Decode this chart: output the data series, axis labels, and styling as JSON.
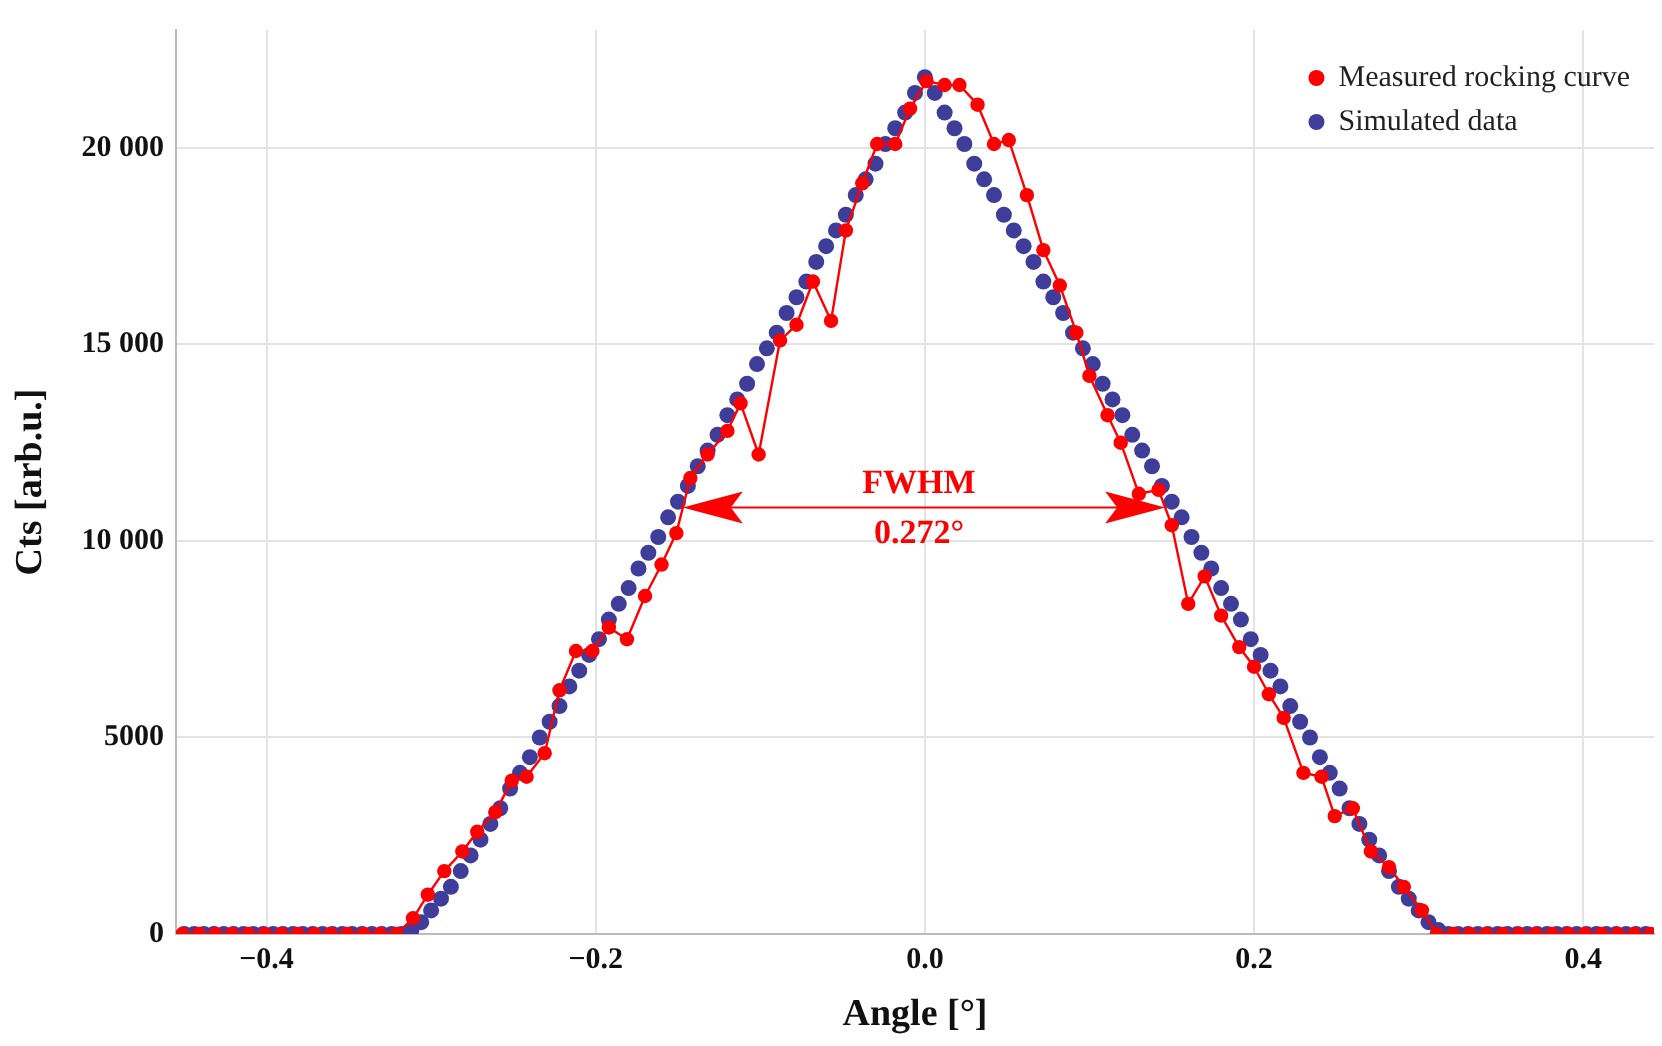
{
  "chart_data": {
    "type": "line",
    "xlabel": "Angle [°]",
    "ylabel": "Cts [arb.u.]",
    "xlim": [
      -0.455,
      0.443
    ],
    "ylim": [
      0,
      23000
    ],
    "xticks": [
      {
        "value": -0.4,
        "label": "−0.4"
      },
      {
        "value": -0.2,
        "label": "−0.2"
      },
      {
        "value": 0,
        "label": "0.0"
      },
      {
        "value": 0.2,
        "label": "0.2"
      },
      {
        "value": 0.4,
        "label": "0.4"
      }
    ],
    "yticks": [
      0,
      5000,
      {
        "value": 10000,
        "label": "10 000"
      },
      {
        "value": 15000,
        "label": "15 000"
      },
      {
        "value": 20000,
        "label": "20 000"
      }
    ],
    "grid": true,
    "legend": "top right",
    "annotations": [
      "FWHM",
      "0.272°"
    ],
    "series": [
      {
        "name": "Measured rocking curve",
        "type": "line",
        "color": "#ff0000",
        "marker": "circle",
        "line_style": "solid",
        "x": [
          -0.451,
          -0.441,
          -0.431,
          -0.421,
          -0.411,
          -0.401,
          -0.391,
          -0.381,
          -0.371,
          -0.361,
          -0.351,
          -0.341,
          -0.331,
          -0.321,
          -0.311,
          -0.302,
          -0.292,
          -0.281,
          -0.272,
          -0.261,
          -0.251,
          -0.242,
          -0.231,
          -0.222,
          -0.212,
          -0.202,
          -0.192,
          -0.181,
          -0.17,
          -0.16,
          -0.151,
          -0.1425,
          -0.132,
          -0.12,
          -0.112,
          -0.101,
          -0.088,
          -0.078,
          -0.068,
          -0.057,
          -0.048,
          -0.038,
          -0.029,
          -0.018,
          -0.009,
          0.001,
          0.012,
          0.021,
          0.032,
          0.042,
          0.051,
          0.062,
          0.072,
          0.082,
          0.092,
          0.1,
          0.111,
          0.119,
          0.13,
          0.142,
          0.15,
          0.16,
          0.17,
          0.18,
          0.191,
          0.2,
          0.209,
          0.218,
          0.23,
          0.241,
          0.249,
          0.26,
          0.271,
          0.282,
          0.291,
          0.302,
          0.311,
          0.321,
          0.331,
          0.341,
          0.351,
          0.361,
          0.371,
          0.381,
          0.391,
          0.401,
          0.411,
          0.421,
          0.431,
          0.441
        ],
        "values": [
          0,
          0,
          0,
          0,
          0,
          0,
          0,
          0,
          0,
          0,
          0,
          0,
          0,
          0,
          400,
          1000,
          1600,
          2100,
          2600,
          3100,
          3900,
          4000,
          4600,
          6200,
          7200,
          7200,
          7800,
          7500,
          8600,
          9400,
          10200,
          11600,
          12200,
          12800,
          13500,
          12200,
          15100,
          15500,
          16600,
          15600,
          17900,
          19100,
          20100,
          20100,
          21000,
          21700,
          21600,
          21600,
          21100,
          20100,
          20200,
          18800,
          17400,
          16500,
          15300,
          14200,
          13200,
          12500,
          11200,
          11300,
          10400,
          8400,
          9100,
          8100,
          7300,
          6800,
          6100,
          5500,
          4100,
          4000,
          3000,
          3200,
          2100,
          1700,
          1200,
          600,
          0,
          0,
          0,
          0,
          0,
          0,
          0,
          0,
          0,
          0,
          0,
          0,
          0,
          0
        ]
      },
      {
        "name": "Simulated data",
        "type": "scatter",
        "color": "#3f3d9a",
        "marker": "circle",
        "x": [
          -0.45,
          -0.444,
          -0.438,
          -0.432,
          -0.426,
          -0.42,
          -0.414,
          -0.408,
          -0.402,
          -0.396,
          -0.39,
          -0.384,
          -0.378,
          -0.372,
          -0.366,
          -0.36,
          -0.354,
          -0.348,
          -0.342,
          -0.336,
          -0.33,
          -0.324,
          -0.318,
          -0.312,
          -0.306,
          -0.3,
          -0.294,
          -0.288,
          -0.282,
          -0.276,
          -0.27,
          -0.264,
          -0.258,
          -0.252,
          -0.246,
          -0.24,
          -0.234,
          -0.228,
          -0.222,
          -0.216,
          -0.21,
          -0.204,
          -0.198,
          -0.192,
          -0.186,
          -0.18,
          -0.174,
          -0.168,
          -0.162,
          -0.156,
          -0.15,
          -0.144,
          -0.138,
          -0.132,
          -0.126,
          -0.12,
          -0.114,
          -0.108,
          -0.102,
          -0.096,
          -0.09,
          -0.084,
          -0.078,
          -0.072,
          -0.066,
          -0.06,
          -0.054,
          -0.048,
          -0.042,
          -0.036,
          -0.03,
          -0.024,
          -0.018,
          -0.012,
          -0.006,
          0,
          0.006,
          0.012,
          0.018,
          0.024,
          0.03,
          0.036,
          0.042,
          0.048,
          0.054,
          0.06,
          0.066,
          0.072,
          0.078,
          0.084,
          0.09,
          0.096,
          0.102,
          0.108,
          0.114,
          0.12,
          0.126,
          0.132,
          0.138,
          0.144,
          0.15,
          0.156,
          0.162,
          0.168,
          0.174,
          0.18,
          0.186,
          0.192,
          0.198,
          0.204,
          0.21,
          0.216,
          0.222,
          0.228,
          0.234,
          0.24,
          0.246,
          0.252,
          0.258,
          0.264,
          0.27,
          0.276,
          0.282,
          0.288,
          0.294,
          0.3,
          0.306,
          0.312,
          0.318,
          0.324,
          0.33,
          0.336,
          0.342,
          0.348,
          0.354,
          0.36,
          0.366,
          0.372,
          0.378,
          0.384,
          0.39,
          0.396,
          0.402,
          0.408,
          0.414,
          0.42,
          0.426,
          0.432,
          0.438
        ],
        "values": [
          0,
          0,
          0,
          0,
          0,
          0,
          0,
          0,
          0,
          0,
          0,
          0,
          0,
          0,
          0,
          0,
          0,
          0,
          0,
          0,
          0,
          0,
          0,
          100,
          300,
          600,
          900,
          1200,
          1600,
          2000,
          2400,
          2800,
          3200,
          3700,
          4100,
          4500,
          5000,
          5400,
          5800,
          6300,
          6700,
          7100,
          7500,
          8000,
          8400,
          8800,
          9300,
          9700,
          10100,
          10600,
          11000,
          11400,
          11900,
          12300,
          12700,
          13200,
          13600,
          14000,
          14500,
          14900,
          15300,
          15800,
          16200,
          16600,
          17100,
          17500,
          17900,
          18300,
          18800,
          19200,
          19600,
          20100,
          20500,
          20900,
          21400,
          21800,
          21400,
          20900,
          20500,
          20100,
          19600,
          19200,
          18800,
          18300,
          17900,
          17500,
          17100,
          16600,
          16200,
          15800,
          15300,
          14900,
          14500,
          14000,
          13600,
          13200,
          12700,
          12300,
          11900,
          11400,
          11000,
          10600,
          10100,
          9700,
          9300,
          8800,
          8400,
          8000,
          7500,
          7100,
          6700,
          6300,
          5800,
          5400,
          5000,
          4500,
          4100,
          3700,
          3200,
          2800,
          2400,
          2000,
          1600,
          1200,
          900,
          600,
          300,
          100,
          0,
          0,
          0,
          0,
          0,
          0,
          0,
          0,
          0,
          0,
          0,
          0,
          0,
          0,
          0,
          0,
          0,
          0,
          0,
          0,
          0
        ]
      }
    ]
  }
}
